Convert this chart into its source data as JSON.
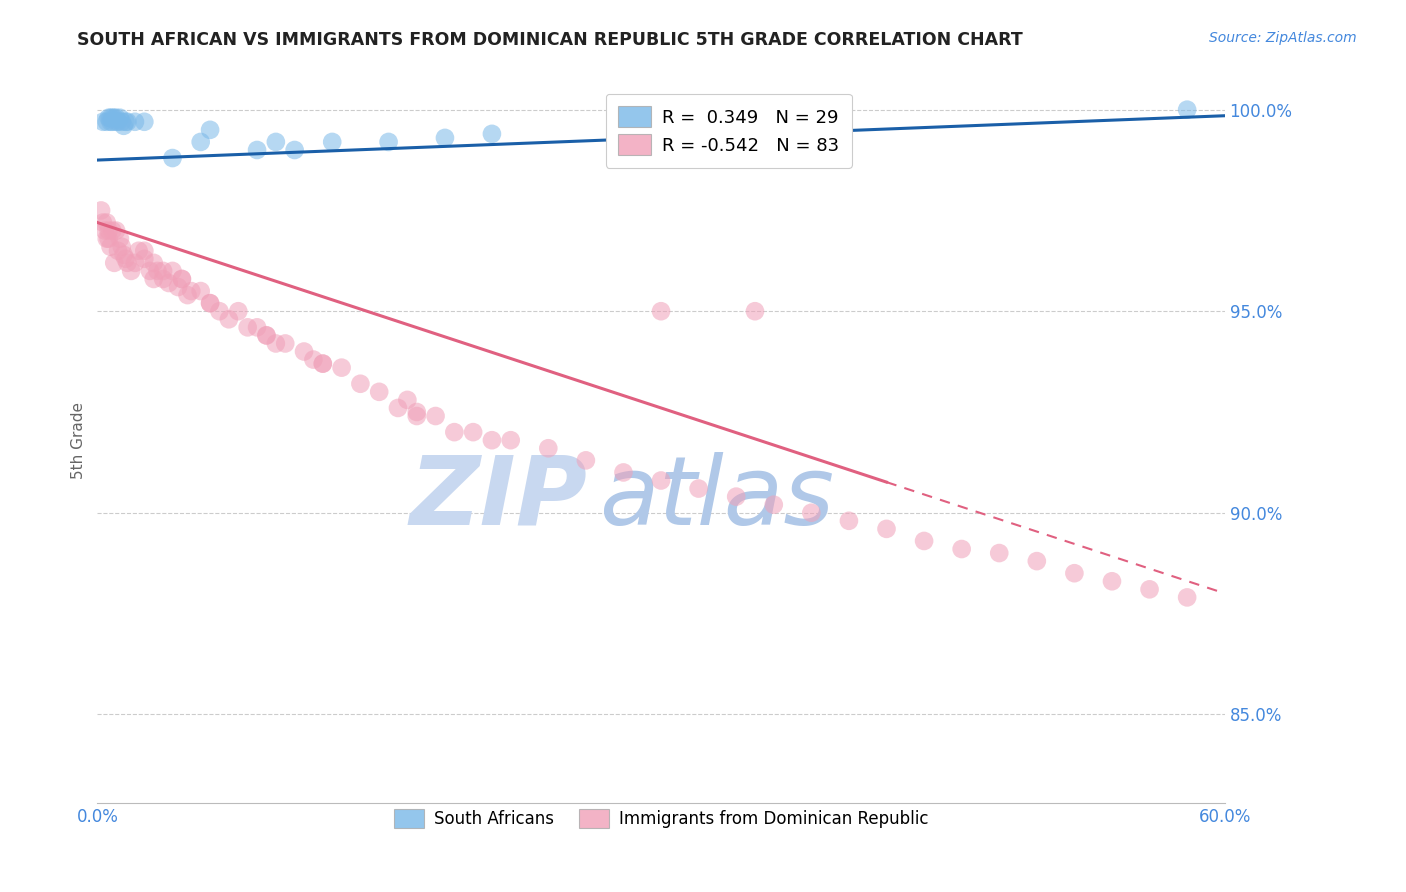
{
  "title": "SOUTH AFRICAN VS IMMIGRANTS FROM DOMINICAN REPUBLIC 5TH GRADE CORRELATION CHART",
  "source": "Source: ZipAtlas.com",
  "ylabel": "5th Grade",
  "xmin": 0.0,
  "xmax": 0.6,
  "ymin": 0.828,
  "ymax": 1.008,
  "blue_color": "#7ab8e8",
  "pink_color": "#f0a0b8",
  "blue_line_color": "#1a5fa8",
  "pink_line_color": "#e06080",
  "title_color": "#222222",
  "tick_label_color": "#4488dd",
  "source_color": "#4488dd",
  "watermark_zip_color": "#c8d8f0",
  "watermark_atlas_color": "#b0c8e8",
  "blue_scatter_x": [
    0.003,
    0.005,
    0.006,
    0.007,
    0.007,
    0.008,
    0.008,
    0.009,
    0.01,
    0.01,
    0.011,
    0.012,
    0.013,
    0.014,
    0.015,
    0.016,
    0.02,
    0.025,
    0.04,
    0.055,
    0.06,
    0.085,
    0.095,
    0.105,
    0.125,
    0.155,
    0.185,
    0.21,
    0.58
  ],
  "blue_scatter_y": [
    0.997,
    0.997,
    0.998,
    0.997,
    0.998,
    0.997,
    0.998,
    0.998,
    0.997,
    0.998,
    0.997,
    0.998,
    0.997,
    0.996,
    0.997,
    0.997,
    0.997,
    0.997,
    0.988,
    0.992,
    0.995,
    0.99,
    0.992,
    0.99,
    0.992,
    0.992,
    0.993,
    0.994,
    1.0
  ],
  "pink_scatter_x": [
    0.002,
    0.003,
    0.004,
    0.005,
    0.005,
    0.006,
    0.006,
    0.007,
    0.008,
    0.009,
    0.01,
    0.011,
    0.012,
    0.013,
    0.014,
    0.015,
    0.016,
    0.018,
    0.02,
    0.022,
    0.025,
    0.028,
    0.03,
    0.032,
    0.035,
    0.038,
    0.04,
    0.043,
    0.045,
    0.048,
    0.05,
    0.055,
    0.06,
    0.065,
    0.07,
    0.075,
    0.08,
    0.085,
    0.09,
    0.095,
    0.1,
    0.11,
    0.115,
    0.12,
    0.13,
    0.14,
    0.15,
    0.165,
    0.17,
    0.18,
    0.2,
    0.22,
    0.24,
    0.26,
    0.28,
    0.3,
    0.32,
    0.34,
    0.36,
    0.38,
    0.4,
    0.42,
    0.44,
    0.46,
    0.48,
    0.5,
    0.52,
    0.54,
    0.56,
    0.58,
    0.3,
    0.35,
    0.16,
    0.17,
    0.19,
    0.21,
    0.025,
    0.03,
    0.035,
    0.045,
    0.06,
    0.09,
    0.12
  ],
  "pink_scatter_y": [
    0.975,
    0.972,
    0.97,
    0.968,
    0.972,
    0.97,
    0.968,
    0.966,
    0.97,
    0.962,
    0.97,
    0.965,
    0.968,
    0.966,
    0.964,
    0.963,
    0.962,
    0.96,
    0.962,
    0.965,
    0.963,
    0.96,
    0.958,
    0.96,
    0.958,
    0.957,
    0.96,
    0.956,
    0.958,
    0.954,
    0.955,
    0.955,
    0.952,
    0.95,
    0.948,
    0.95,
    0.946,
    0.946,
    0.944,
    0.942,
    0.942,
    0.94,
    0.938,
    0.937,
    0.936,
    0.932,
    0.93,
    0.928,
    0.925,
    0.924,
    0.92,
    0.918,
    0.916,
    0.913,
    0.91,
    0.908,
    0.906,
    0.904,
    0.902,
    0.9,
    0.898,
    0.896,
    0.893,
    0.891,
    0.89,
    0.888,
    0.885,
    0.883,
    0.881,
    0.879,
    0.95,
    0.95,
    0.926,
    0.924,
    0.92,
    0.918,
    0.965,
    0.962,
    0.96,
    0.958,
    0.952,
    0.944,
    0.937
  ],
  "blue_line_x0": 0.0,
  "blue_line_x1": 0.6,
  "blue_line_y0": 0.9875,
  "blue_line_y1": 0.9985,
  "pink_line_x0": 0.0,
  "pink_line_x1": 0.6,
  "pink_line_y0": 0.972,
  "pink_line_y1": 0.88,
  "pink_line_solid_x1": 0.42,
  "ytick_positions": [
    0.85,
    0.9,
    0.95,
    1.0
  ],
  "ytick_labels": [
    "85.0%",
    "90.0%",
    "95.0%",
    "100.0%"
  ],
  "xtick_positions": [
    0.0,
    0.1,
    0.2,
    0.3,
    0.4,
    0.5,
    0.6
  ],
  "xtick_labels": [
    "0.0%",
    "",
    "",
    "",
    "",
    "",
    "60.0%"
  ]
}
